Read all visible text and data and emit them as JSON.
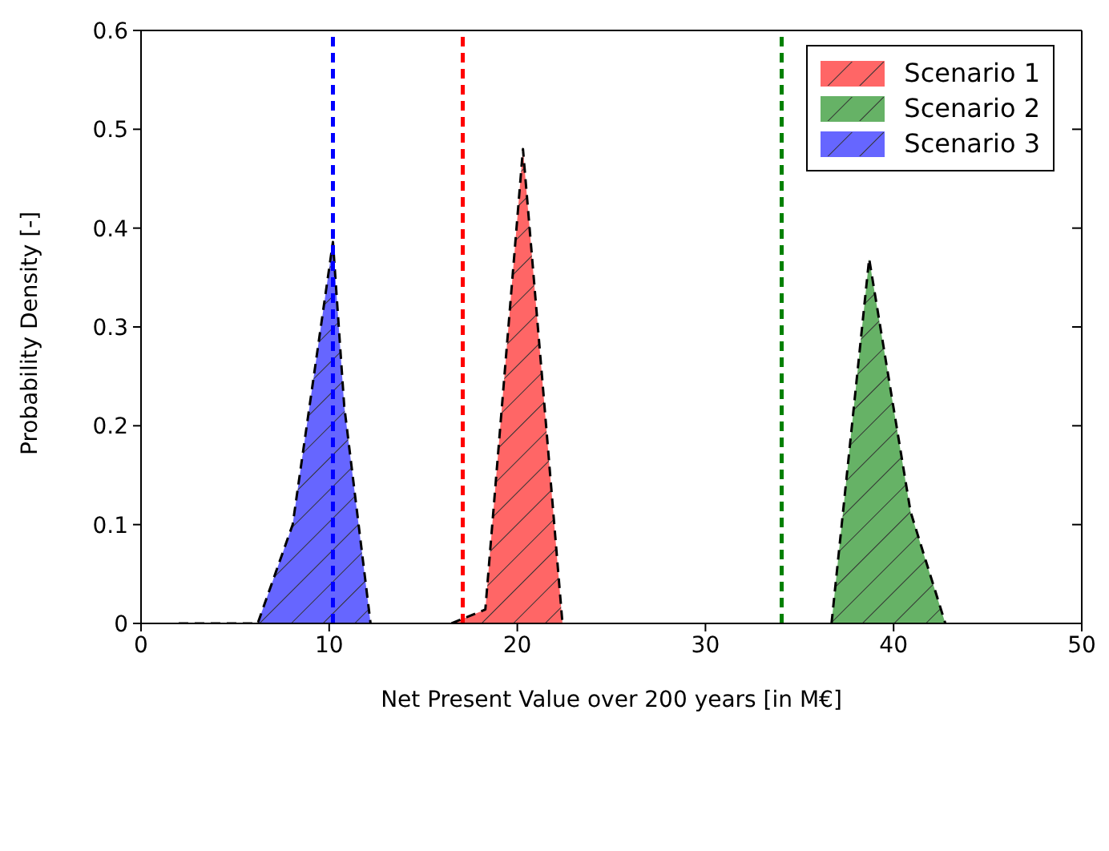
{
  "chart_data": {
    "type": "area",
    "xlabel": "Net Present Value over 200 years [in M€]",
    "ylabel": "Probability Density [-]",
    "series": [
      {
        "name": "Scenario 1",
        "color": "#ff6666",
        "x": [
          16.5,
          18.3,
          20.3,
          21.4,
          22.4
        ],
        "values": [
          0,
          0.014,
          0.48,
          0.23,
          0
        ]
      },
      {
        "name": "Scenario 2",
        "color": "#66b266",
        "x": [
          36.7,
          38.7,
          40.9,
          42.75
        ],
        "values": [
          0,
          0.369,
          0.113,
          0
        ]
      },
      {
        "name": "Scenario 3",
        "color": "#6666ff",
        "x": [
          2,
          6.2,
          8.06,
          10.2,
          10.8,
          12.2
        ],
        "values": [
          0,
          0,
          0.1,
          0.386,
          0.22,
          0
        ]
      }
    ],
    "ref_lines": [
      {
        "axis": "x",
        "value": 17.1,
        "color": "#ff0000",
        "line_style": "dashed"
      },
      {
        "axis": "x",
        "value": 34.05,
        "color": "#008000",
        "line_style": "dashed"
      },
      {
        "axis": "x",
        "value": 10.2,
        "color": "#0000ff",
        "line_style": "dashed"
      }
    ],
    "line_style": "dashed",
    "xlim": [
      0,
      50
    ],
    "xticks": [
      0,
      10,
      20,
      30,
      40,
      50
    ],
    "ylim": [
      0,
      0.6
    ],
    "yticks": [
      0,
      0.1,
      0.2,
      0.3,
      0.4,
      0.5,
      0.6
    ],
    "grid": false,
    "legend": "top right"
  }
}
